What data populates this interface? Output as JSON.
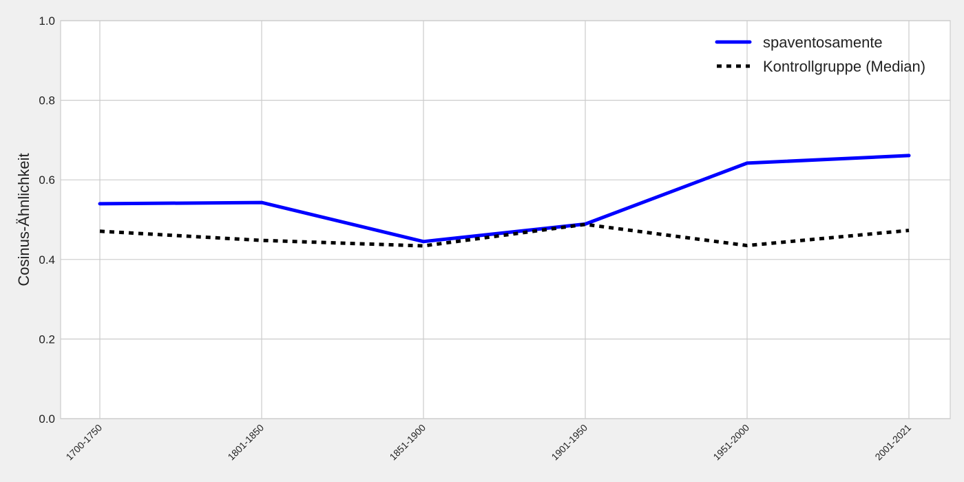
{
  "chart_data": {
    "type": "line",
    "title": "",
    "xlabel": "",
    "ylabel": "Cosinus-Ähnlichkeit",
    "categories": [
      "1700-1750",
      "1801-1850",
      "1851-1900",
      "1901-1950",
      "1951-2000",
      "2001-2021"
    ],
    "yticks": [
      "0.0",
      "0.2",
      "0.4",
      "0.6",
      "0.8",
      "1.0"
    ],
    "ylim": [
      0,
      1
    ],
    "grid": true,
    "legend_position": "top-right",
    "series": [
      {
        "name": "spaventosamente",
        "values": [
          0.54,
          0.543,
          0.445,
          0.489,
          0.642,
          0.661
        ],
        "color": "#0000ff",
        "style": "solid"
      },
      {
        "name": "Kontrollgruppe (Median)",
        "values": [
          0.471,
          0.448,
          0.434,
          0.488,
          0.435,
          0.473
        ],
        "color": "#000000",
        "style": "dotted"
      }
    ]
  }
}
